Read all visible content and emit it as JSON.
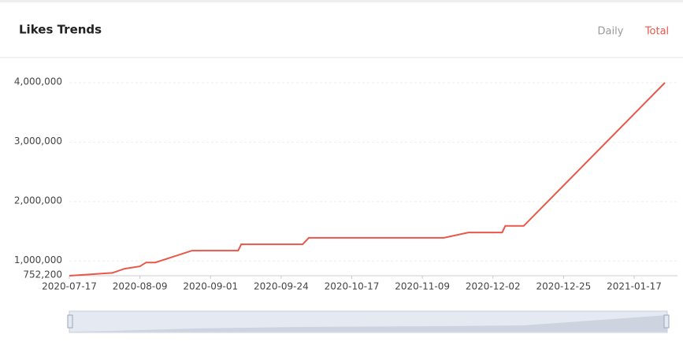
{
  "header": {
    "title": "Likes Trends",
    "tabs": [
      "Daily",
      "Total"
    ]
  },
  "chart_data": {
    "type": "line",
    "x": [
      "2020-07-17",
      "2020-07-31",
      "2020-08-04",
      "2020-08-09",
      "2020-08-11",
      "2020-08-14",
      "2020-08-26",
      "2020-09-10",
      "2020-09-11",
      "2020-10-01",
      "2020-10-03",
      "2020-11-16",
      "2020-11-24",
      "2020-12-05",
      "2020-12-06",
      "2020-12-12",
      "2021-01-27"
    ],
    "series": [
      {
        "name": "Total",
        "color": "#e8584a",
        "values": [
          752200,
          800000,
          870000,
          910000,
          975000,
          975000,
          1175000,
          1175000,
          1280000,
          1280000,
          1390000,
          1390000,
          1480000,
          1480000,
          1590000,
          1590000,
          4000000
        ]
      }
    ],
    "xlim": [
      "2020-07-17",
      "2021-01-27"
    ],
    "xticks": [
      "2020-07-17",
      "2020-08-09",
      "2020-09-01",
      "2020-09-24",
      "2020-10-17",
      "2020-11-09",
      "2020-12-02",
      "2020-12-25",
      "2021-01-17"
    ],
    "ylim": [
      752200,
      4000000
    ],
    "yticks": [
      {
        "value": 752200,
        "label": "752,200"
      },
      {
        "value": 1000000,
        "label": "1,000,000"
      },
      {
        "value": 2000000,
        "label": "2,000,000"
      },
      {
        "value": 3000000,
        "label": "3,000,000"
      },
      {
        "value": 4000000,
        "label": "4,000,000"
      }
    ],
    "grid": true
  }
}
